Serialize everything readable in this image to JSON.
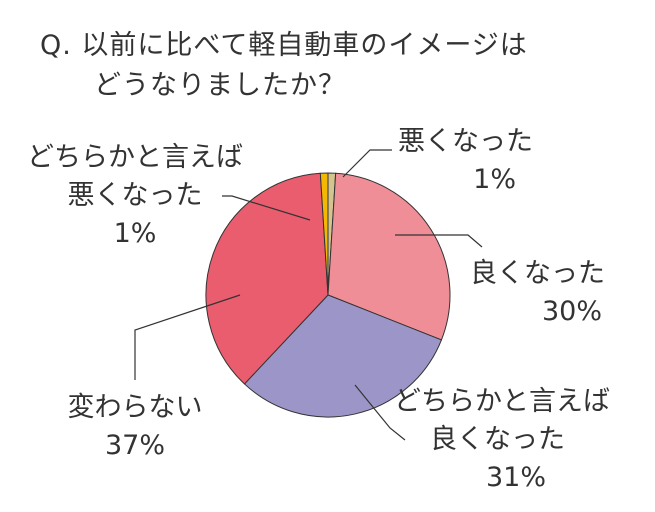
{
  "title": {
    "line1": "Q. 以前に比べて軽自動車のイメージは",
    "line2": "どうなりましたか？"
  },
  "chart_data": {
    "type": "pie",
    "start": "12 o'clock, clockwise",
    "slices": [
      {
        "label_lines": [
          "悪くなった"
        ],
        "pct_label": "1%",
        "value": 1,
        "color": "#d4c48e"
      },
      {
        "label_lines": [
          "良くなった"
        ],
        "pct_label": "30%",
        "value": 30,
        "color": "#f08e98"
      },
      {
        "label_lines": [
          "どちらかと言えば",
          "良くなった"
        ],
        "pct_label": "31%",
        "value": 31,
        "color": "#9c96c8"
      },
      {
        "label_lines": [
          "変わらない"
        ],
        "pct_label": "37%",
        "value": 37,
        "color": "#e95d6e"
      },
      {
        "label_lines": [
          "どちらかと言えば",
          "悪くなった"
        ],
        "pct_label": "1%",
        "value": 1,
        "color": "#f5b800"
      }
    ]
  }
}
